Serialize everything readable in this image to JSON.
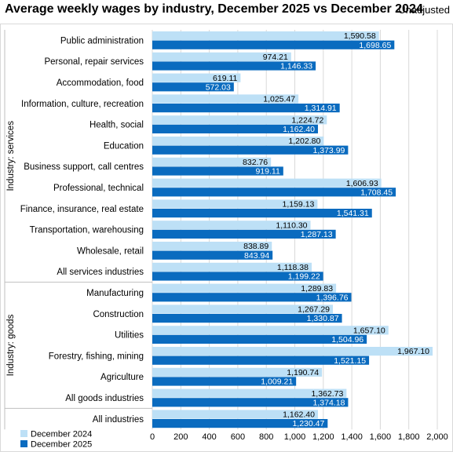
{
  "title": "Average weekly wages by industry, December 2025 vs December 2024",
  "adjustment_note": "Unadjusted",
  "colors": {
    "dec2024": "#bde0f6",
    "dec2025": "#0a6bbf"
  },
  "chart_data": {
    "type": "bar",
    "orientation": "horizontal",
    "title": "Average weekly wages by industry, December 2025 vs December 2024",
    "categories": [
      "Public administration",
      "Personal, repair services",
      "Accommodation, food",
      "Information, culture, recreation",
      "Health, social",
      "Education",
      "Business support, call centres",
      "Professional, technical",
      "Finance, insurance, real estate",
      "Transportation, warehousing",
      "Wholesale, retail",
      "All services industries",
      "Manufacturing",
      "Construction",
      "Utilities",
      "Forestry, fishing, mining",
      "Agriculture",
      "All goods industries",
      "All industries"
    ],
    "category_groups": [
      {
        "label": "Industry: services",
        "count": 12
      },
      {
        "label": "Industry: goods",
        "count": 6
      },
      {
        "label": "",
        "count": 1
      }
    ],
    "series": [
      {
        "name": "December 2024",
        "values": [
          1590.58,
          974.21,
          619.11,
          1025.47,
          1224.72,
          1202.8,
          832.76,
          1606.93,
          1159.13,
          1110.3,
          838.89,
          1118.38,
          1289.83,
          1267.29,
          1657.1,
          1967.1,
          1190.74,
          1362.73,
          1162.4
        ],
        "labels": [
          "1,590.58",
          "974.21",
          "619.11",
          "1,025.47",
          "1,224.72",
          "1,202.80",
          "832.76",
          "1,606.93",
          "1,159.13",
          "1,110.30",
          "838.89",
          "1,118.38",
          "1,289.83",
          "1,267.29",
          "1,657.10",
          "1,967.10",
          "1,190.74",
          "1,362.73",
          "1,162.40"
        ]
      },
      {
        "name": "December 2025",
        "values": [
          1698.65,
          1146.33,
          572.03,
          1314.91,
          1162.4,
          1373.99,
          919.11,
          1708.45,
          1541.31,
          1287.13,
          843.94,
          1199.22,
          1396.76,
          1330.87,
          1504.96,
          1521.15,
          1009.21,
          1374.18,
          1230.47
        ],
        "labels": [
          "1,698.65",
          "1,146.33",
          "572.03",
          "1,314.91",
          "1,162.40",
          "1,373.99",
          "919.11",
          "1,708.45",
          "1,541.31",
          "1,287.13",
          "843.94",
          "1,199.22",
          "1,396.76",
          "1,330.87",
          "1,504.96",
          "1,521.15",
          "1,009.21",
          "1,374.18",
          "1,230.47"
        ]
      }
    ],
    "xlim": [
      0,
      2000
    ],
    "xticks": [
      0,
      200,
      400,
      600,
      800,
      1000,
      1200,
      1400,
      1600,
      1800,
      2000
    ],
    "xtick_labels": [
      "0",
      "200",
      "400",
      "600",
      "800",
      "1,000",
      "1,200",
      "1,400",
      "1,600",
      "1,800",
      "2,000"
    ],
    "grid": true,
    "legend_position": "bottom-left"
  }
}
